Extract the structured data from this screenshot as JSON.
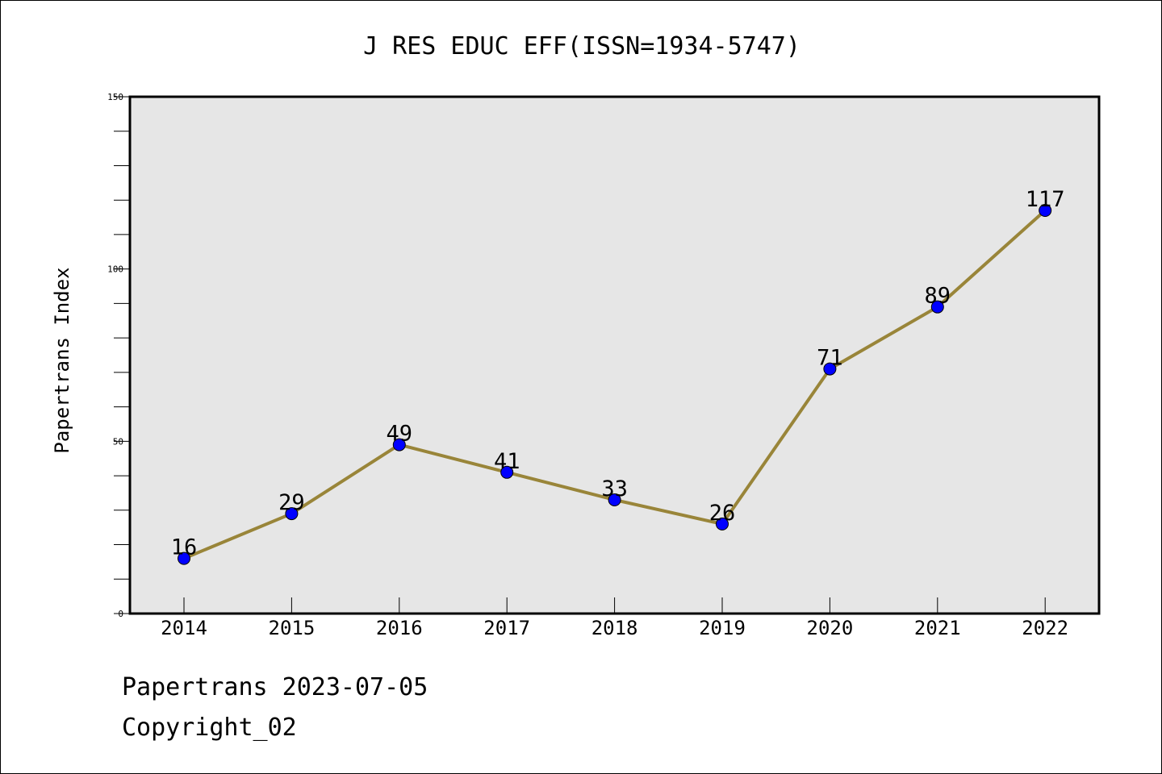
{
  "footer": {
    "line1": "Papertrans 2023-07-05",
    "line2": "Copyright_02"
  },
  "colors": {
    "plot_background": "#e6e6e6",
    "line": "#998539",
    "marker": "#0000ff",
    "axis": "#000000"
  },
  "chart_data": {
    "type": "line",
    "title": "J RES EDUC EFF(ISSN=1934-5747)",
    "xlabel": "",
    "ylabel": "Papertrans Index",
    "categories": [
      "2014",
      "2015",
      "2016",
      "2017",
      "2018",
      "2019",
      "2020",
      "2021",
      "2022"
    ],
    "series": [
      {
        "values": [
          16,
          29,
          49,
          41,
          33,
          26,
          71,
          89,
          117
        ],
        "data_labels": [
          "16",
          "29",
          "49",
          "41",
          "33",
          "26",
          "71",
          "89",
          "117"
        ]
      }
    ],
    "ylim": [
      0,
      150
    ],
    "y_major_ticks": [
      0,
      50,
      100,
      150
    ],
    "y_major_tick_labels": [
      "0",
      "50",
      "100",
      "150"
    ],
    "y_minor_step": 10,
    "grid": false,
    "legend": "none"
  }
}
